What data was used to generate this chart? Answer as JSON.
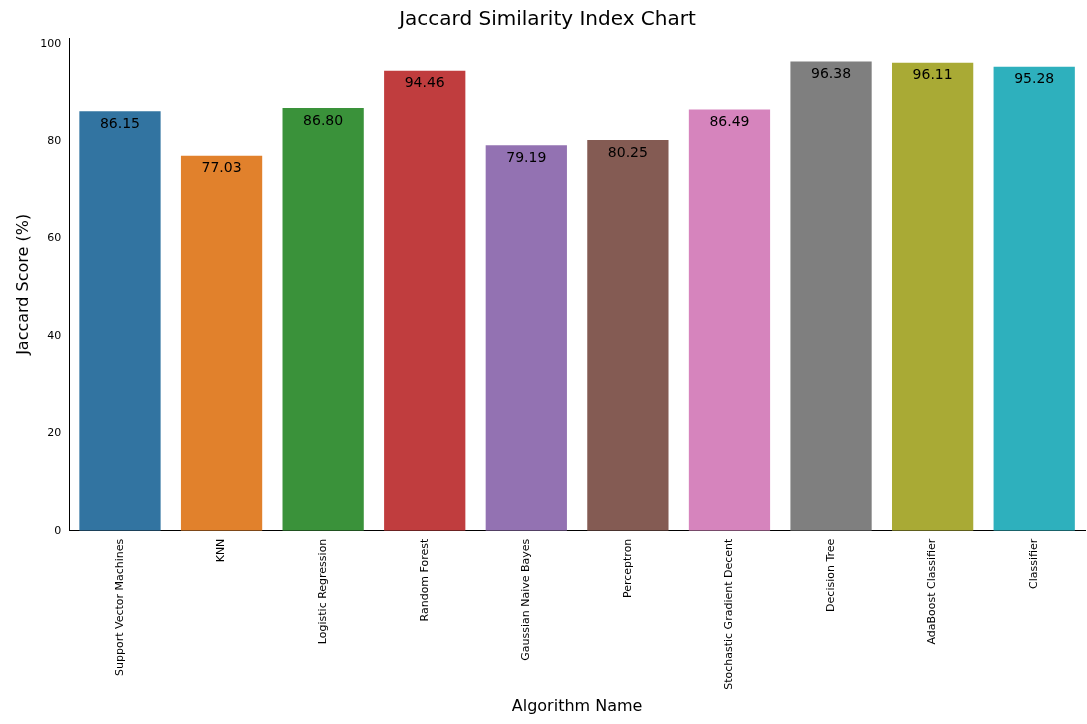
{
  "chart_data": {
    "type": "bar",
    "title": "Jaccard Similarity Index Chart",
    "xlabel": "Algorithm Name",
    "ylabel": "Jaccard Score (%)",
    "categories": [
      "Support Vector Machines",
      "KNN",
      "Logistic Regression",
      "Random Forest",
      "Gaussian Naive Bayes",
      "Perceptron",
      "Stochastic Gradient Decent",
      "Decision Tree",
      "AdaBoost Classifier",
      "Classifier"
    ],
    "values": [
      86.15,
      77.03,
      86.8,
      94.46,
      79.19,
      80.25,
      86.49,
      96.38,
      96.11,
      95.28
    ],
    "colors": [
      "#3274a1",
      "#e1812c",
      "#3a923a",
      "#c03d3e",
      "#9372b2",
      "#845b53",
      "#d684bd",
      "#7f7f7f",
      "#a9aa35",
      "#2eb0bd"
    ],
    "value_labels": [
      "86.15",
      "77.03",
      "86.80",
      "94.46",
      "79.19",
      "80.25",
      "86.49",
      "96.38",
      "96.11",
      "95.28"
    ],
    "ylim": [
      0,
      101.2
    ],
    "yticks": [
      0,
      20,
      40,
      60,
      80,
      100
    ],
    "grid": false,
    "legend": false
  }
}
